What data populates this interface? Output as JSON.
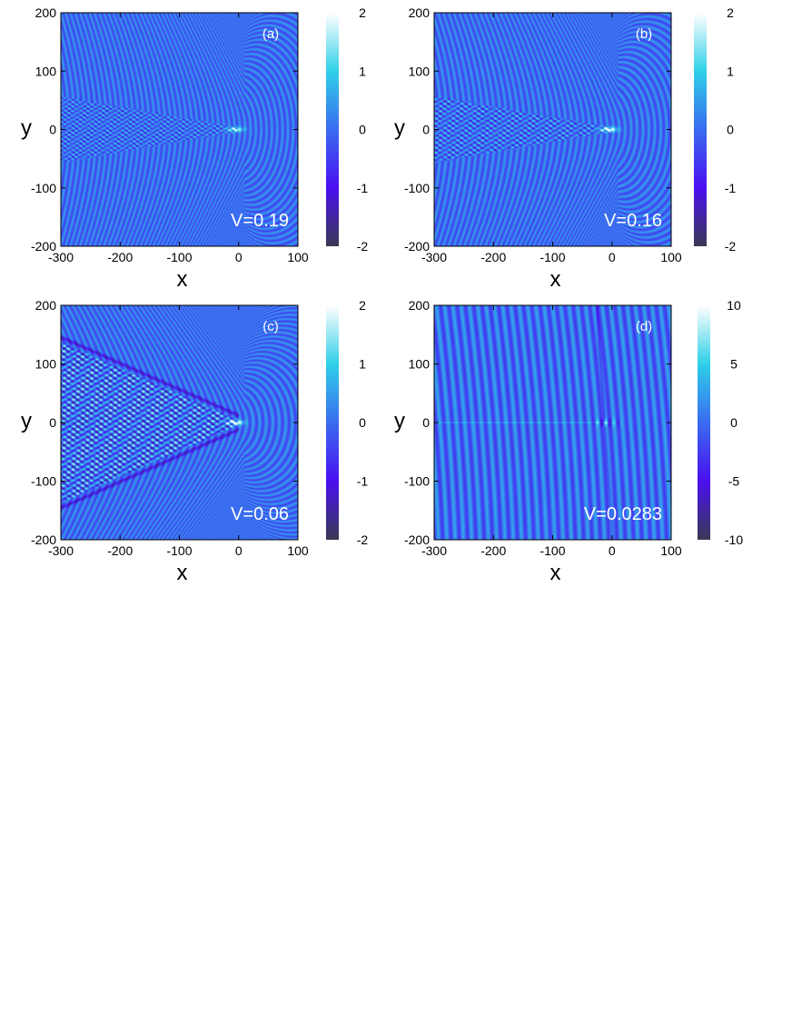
{
  "chart_data": [
    {
      "type": "heatmap",
      "panel_label": "(a)",
      "annotation": "V=0.19",
      "xlabel": "x",
      "ylabel": "y",
      "xlim": [
        -300,
        100
      ],
      "ylim": [
        -200,
        200
      ],
      "x_ticks": [
        "-300",
        "-200",
        "-100",
        "0",
        "100"
      ],
      "y_ticks": [
        "200",
        "100",
        "0",
        "-100",
        "-200"
      ],
      "colorbar": {
        "range": [
          -2,
          2
        ],
        "ticks": [
          "2",
          "1",
          "0",
          "-1",
          "-2"
        ]
      },
      "pattern": {
        "wake_half_angle_deg": 10,
        "wake_amplitude": 0.9,
        "wavelength": 9,
        "curvature": 0.55,
        "core_intensity": 1.6
      }
    },
    {
      "type": "heatmap",
      "panel_label": "(b)",
      "annotation": "V=0.16",
      "xlabel": "x",
      "ylabel": "y",
      "xlim": [
        -300,
        100
      ],
      "ylim": [
        -200,
        200
      ],
      "x_ticks": [
        "-300",
        "-200",
        "-100",
        "0",
        "100"
      ],
      "y_ticks": [
        "200",
        "100",
        "0",
        "-100",
        "-200"
      ],
      "colorbar": {
        "range": [
          -2,
          2
        ],
        "ticks": [
          "2",
          "1",
          "0",
          "-1",
          "-2"
        ]
      },
      "pattern": {
        "wake_half_angle_deg": 10,
        "wake_amplitude": 1.0,
        "wavelength": 10,
        "curvature": 0.6,
        "core_intensity": 2.0
      }
    },
    {
      "type": "heatmap",
      "panel_label": "(c)",
      "annotation": "V=0.06",
      "xlabel": "x",
      "ylabel": "y",
      "xlim": [
        -300,
        100
      ],
      "ylim": [
        -200,
        200
      ],
      "x_ticks": [
        "-300",
        "-200",
        "-100",
        "0",
        "100"
      ],
      "y_ticks": [
        "200",
        "100",
        "0",
        "-100",
        "-200"
      ],
      "colorbar": {
        "range": [
          -2,
          2
        ],
        "ticks": [
          "2",
          "1",
          "0",
          "-1",
          "-2"
        ]
      },
      "pattern": {
        "wake_half_angle_deg": 24,
        "wake_amplitude": 1.5,
        "wavelength": 11,
        "curvature": 1.0,
        "core_intensity": 2.0
      }
    },
    {
      "type": "heatmap",
      "panel_label": "(d)",
      "annotation": "V=0.0283",
      "xlabel": "x",
      "ylabel": "y",
      "xlim": [
        -300,
        100
      ],
      "ylim": [
        -200,
        200
      ],
      "x_ticks": [
        "-300",
        "-200",
        "-100",
        "0",
        "100"
      ],
      "y_ticks": [
        "200",
        "100",
        "0",
        "-100",
        "-200"
      ],
      "colorbar": {
        "range": [
          -10,
          10
        ],
        "ticks": [
          "10",
          "5",
          "0",
          "-5",
          "-10"
        ]
      },
      "pattern": {
        "wake_half_angle_deg": 0,
        "wake_amplitude": 0,
        "wavelength": 14,
        "curvature": 0.05,
        "core_intensity": 1.2
      }
    }
  ],
  "colors": {
    "colormap": [
      "#3a3a55",
      "#4a10f0",
      "#3a6cf0",
      "#2fd0e8",
      "#ffffff"
    ],
    "annotation_text": "#ffffff",
    "axis": "#000000"
  }
}
